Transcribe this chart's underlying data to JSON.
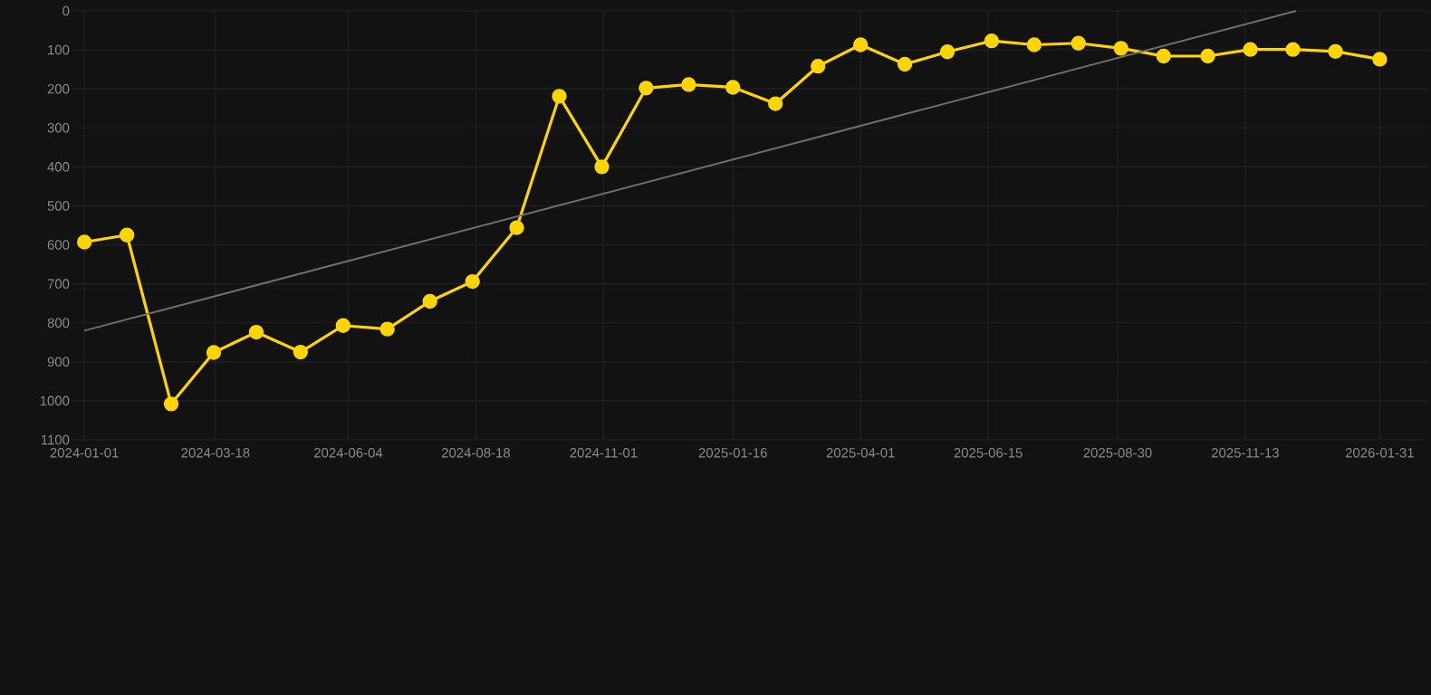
{
  "chart_data": {
    "type": "line",
    "x": [
      "2024-01-01",
      "2024-01-26",
      "2024-02-21",
      "2024-03-17",
      "2024-04-11",
      "2024-05-07",
      "2024-06-01",
      "2024-06-27",
      "2024-07-22",
      "2024-08-16",
      "2024-09-11",
      "2024-10-06",
      "2024-10-31",
      "2024-11-26",
      "2024-12-21",
      "2025-01-16",
      "2025-02-10",
      "2025-03-07",
      "2025-04-01",
      "2025-04-27",
      "2025-05-22",
      "2025-06-17",
      "2025-07-12",
      "2025-08-07",
      "2025-09-01",
      "2025-09-26",
      "2025-10-22",
      "2025-11-16",
      "2025-12-11",
      "2026-01-05",
      "2026-01-31"
    ],
    "series": [
      {
        "color": "#ffd500",
        "values": [
          593,
          575,
          1008,
          876,
          824,
          875,
          807,
          816,
          745,
          694,
          556,
          219,
          400,
          198,
          189,
          196,
          238,
          142,
          87,
          137,
          105,
          77,
          87,
          83,
          96,
          116,
          116,
          99,
          99,
          104,
          124
        ]
      },
      {
        "type": "line",
        "color": "#6e6e6e",
        "marker": "none",
        "x": [
          "2024-01-01",
          "2025-12-13"
        ],
        "values": [
          820,
          0
        ]
      }
    ],
    "xlim": [
      "2023-12-25",
      "2026-02-28"
    ],
    "xticks": [
      "2024-01-01",
      "2024-03-18",
      "2024-06-04",
      "2024-08-18",
      "2024-11-01",
      "2025-01-16",
      "2025-04-01",
      "2025-06-15",
      "2025-08-30",
      "2025-11-13",
      "2026-01-31"
    ],
    "ylim": [
      1100,
      0
    ],
    "yticks": [
      0,
      100,
      200,
      300,
      400,
      500,
      600,
      700,
      800,
      900,
      1000,
      1100
    ],
    "grid": true,
    "marker": "circle",
    "line_style": "solid"
  }
}
